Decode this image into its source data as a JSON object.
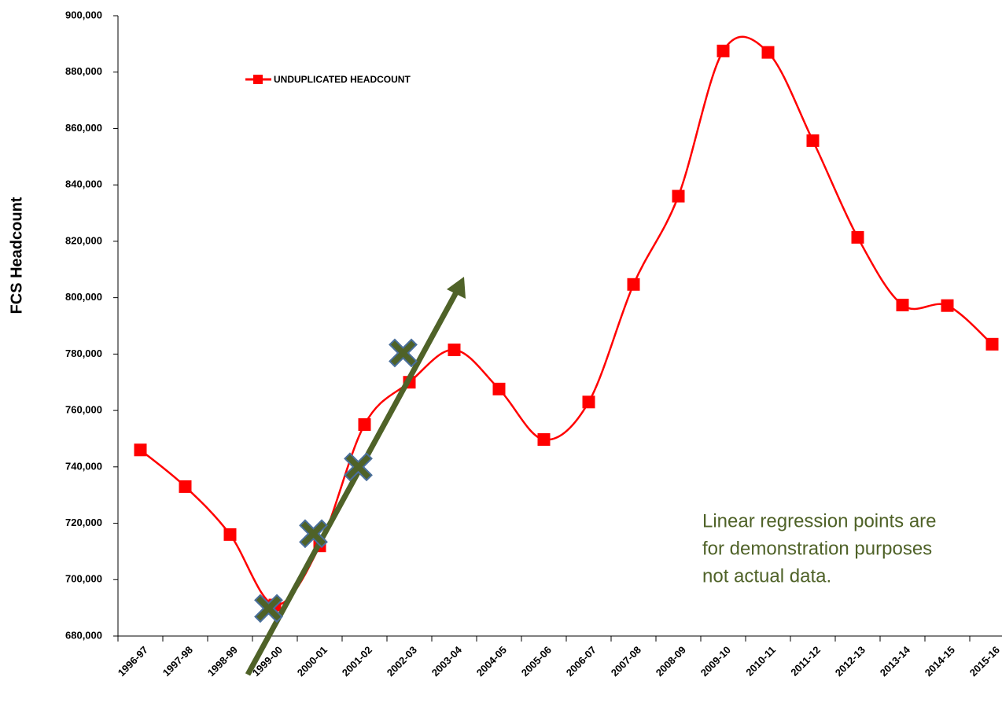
{
  "chart_data": {
    "type": "line",
    "y_label": "FCS Headcount",
    "categories": [
      "1996-97",
      "1997-98",
      "1998-99",
      "1999-00",
      "2000-01",
      "2001-02",
      "2002-03",
      "2003-04",
      "2004-05",
      "2005-06",
      "2006-07",
      "2007-08",
      "2008-09",
      "2009-10",
      "2010-11",
      "2011-12",
      "2012-13",
      "2013-14",
      "2014-15",
      "2015-16"
    ],
    "series": [
      {
        "name": "UNDUPLICATED HEADCOUNT",
        "color": "#ff0000",
        "smooth": true,
        "values": [
          746000,
          733000,
          716000,
          691000,
          712000,
          755000,
          770000,
          781500,
          767600,
          749700,
          763000,
          804700,
          836000,
          887500,
          887000,
          855700,
          821400,
          797400,
          797200,
          783500
        ]
      },
      {
        "color": "#4f6228",
        "marker": "x",
        "values": [
          null,
          null,
          null,
          689800,
          716300,
          740000,
          780400,
          null,
          null,
          null,
          null,
          null,
          null,
          null,
          null,
          null,
          null,
          null,
          null,
          null
        ]
      }
    ],
    "ylim": [
      680000,
      900000
    ],
    "yticks": [
      {
        "value": 680000,
        "label": "680,000"
      },
      {
        "value": 700000,
        "label": "700,000"
      },
      {
        "value": 720000,
        "label": "720,000"
      },
      {
        "value": 740000,
        "label": "740,000"
      },
      {
        "value": 760000,
        "label": "760,000"
      },
      {
        "value": 780000,
        "label": "780,000"
      },
      {
        "value": 800000,
        "label": "800,000"
      },
      {
        "value": 820000,
        "label": "820,000"
      },
      {
        "value": 840000,
        "label": "840,000"
      },
      {
        "value": 860000,
        "label": "860,000"
      },
      {
        "value": 880000,
        "label": "880,000"
      },
      {
        "value": 900000,
        "label": "900,000"
      }
    ],
    "grid": false,
    "legend": "top-left",
    "annotation": {
      "lines": [
        "Linear regression points are",
        "for demonstration purposes",
        "not actual data."
      ],
      "color": "#4f6228"
    }
  }
}
